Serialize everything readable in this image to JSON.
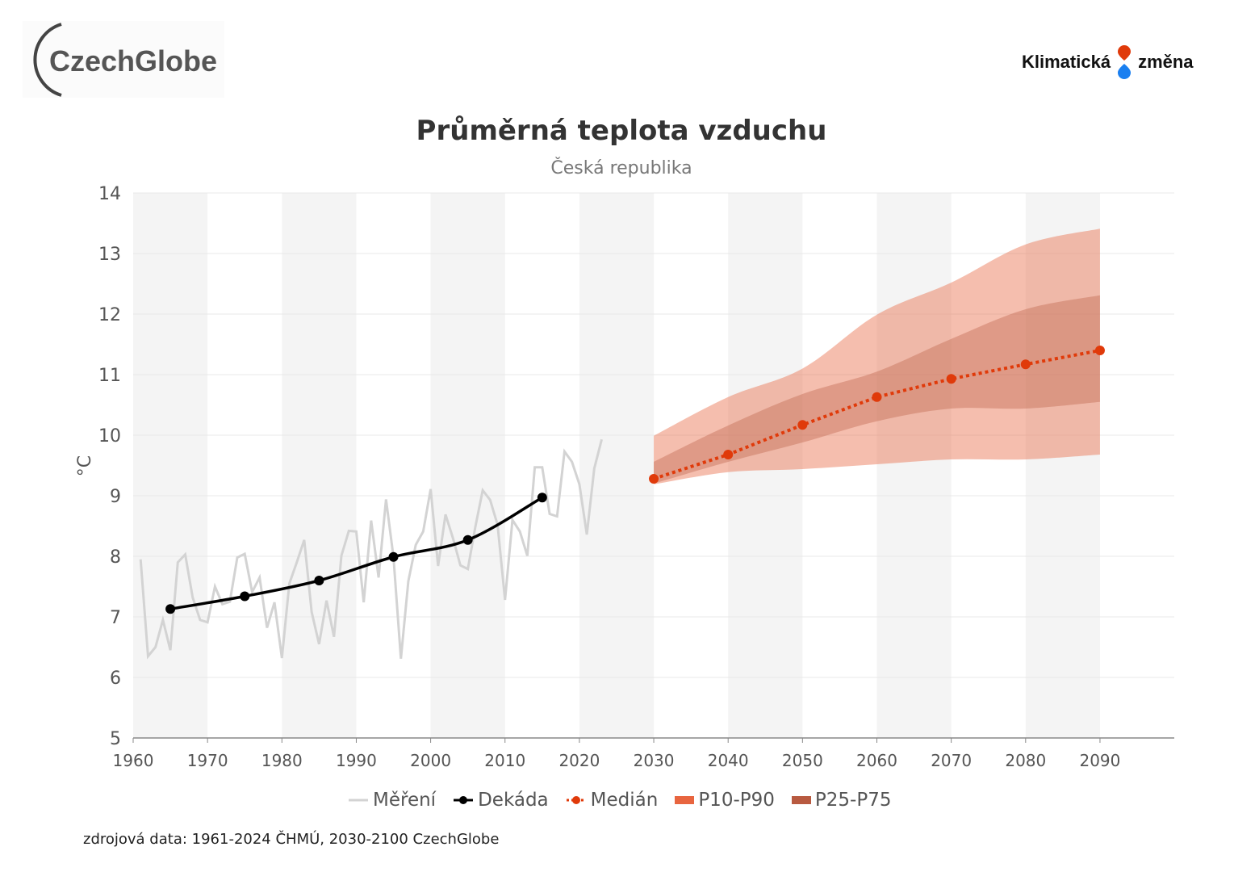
{
  "logos": {
    "left": "CzechGlobe",
    "right_a": "Klimatická",
    "right_b": "změna"
  },
  "title": "Průměrná teplota vzduchu",
  "subtitle": "Česká republika",
  "source": "zdrojová data: 1961-2024 ČHMÚ, 2030-2100 CzechGlobe",
  "chart_data": {
    "type": "line",
    "title": "Průměrná teplota vzduchu",
    "subtitle": "Česká republika",
    "xlabel": "",
    "ylabel": "°C",
    "xlim": [
      1960,
      2100
    ],
    "ylim": [
      5,
      14
    ],
    "x_ticks": [
      1960,
      1970,
      1980,
      1990,
      2000,
      2010,
      2020,
      2030,
      2040,
      2050,
      2060,
      2070,
      2080,
      2090
    ],
    "y_ticks": [
      5,
      6,
      7,
      8,
      9,
      10,
      11,
      12,
      13,
      14
    ],
    "grid": true,
    "legend_position": "bottom",
    "colors": {
      "measured": "#d3d3d3",
      "decade": "#000000",
      "median": "#e03a0a",
      "p10_p90": "#e8653f",
      "p25_p75": "#b85a40",
      "stripe": "#f4f4f4"
    },
    "legend": [
      "Měření",
      "Dekáda",
      "Medián",
      "P10-P90",
      "P25-P75"
    ],
    "series": [
      {
        "name": "Měření",
        "x": [
          1961,
          1962,
          1963,
          1964,
          1965,
          1966,
          1967,
          1968,
          1969,
          1970,
          1971,
          1972,
          1973,
          1974,
          1975,
          1976,
          1977,
          1978,
          1979,
          1980,
          1981,
          1982,
          1983,
          1984,
          1985,
          1986,
          1987,
          1988,
          1989,
          1990,
          1991,
          1992,
          1993,
          1994,
          1995,
          1996,
          1997,
          1998,
          1999,
          2000,
          2001,
          2002,
          2003,
          2004,
          2005,
          2006,
          2007,
          2008,
          2009,
          2010,
          2011,
          2012,
          2013,
          2014,
          2015,
          2016,
          2017,
          2018,
          2019,
          2020,
          2021,
          2022,
          2023
        ],
        "y": [
          7.95,
          6.35,
          6.5,
          6.95,
          6.45,
          7.9,
          8.03,
          7.32,
          6.95,
          6.91,
          7.5,
          7.21,
          7.25,
          7.98,
          8.04,
          7.41,
          7.65,
          6.82,
          7.24,
          6.32,
          7.55,
          7.9,
          8.27,
          7.08,
          6.55,
          7.27,
          6.67,
          8.01,
          8.42,
          8.41,
          7.24,
          8.59,
          7.65,
          8.94,
          7.99,
          6.31,
          7.59,
          8.19,
          8.41,
          9.11,
          7.84,
          8.69,
          8.3,
          7.85,
          7.79,
          8.48,
          9.09,
          8.93,
          8.52,
          7.28,
          8.6,
          8.41,
          8.01,
          9.47,
          9.47,
          8.7,
          8.66,
          9.73,
          9.56,
          9.19,
          8.36,
          9.45,
          9.93
        ]
      },
      {
        "name": "Dekáda",
        "x": [
          1965,
          1975,
          1985,
          1995,
          2005,
          2015
        ],
        "y": [
          7.13,
          7.34,
          7.6,
          7.99,
          8.27,
          8.97
        ]
      },
      {
        "name": "Medián",
        "x": [
          2030,
          2040,
          2050,
          2060,
          2070,
          2080,
          2090
        ],
        "y": [
          9.28,
          9.68,
          10.17,
          10.63,
          10.93,
          11.17,
          11.4
        ]
      },
      {
        "name": "P10-P90",
        "x": [
          2030,
          2040,
          2050,
          2060,
          2070,
          2080,
          2090
        ],
        "low": [
          9.19,
          9.39,
          9.44,
          9.52,
          9.6,
          9.6,
          9.68
        ],
        "high": [
          9.99,
          10.63,
          11.1,
          11.99,
          12.52,
          13.15,
          13.41
        ]
      },
      {
        "name": "P25-P75",
        "x": [
          2030,
          2040,
          2050,
          2060,
          2070,
          2080,
          2090
        ],
        "low": [
          9.2,
          9.56,
          9.88,
          10.23,
          10.44,
          10.44,
          10.55
        ],
        "high": [
          9.56,
          10.16,
          10.68,
          11.05,
          11.59,
          12.08,
          12.31
        ]
      }
    ]
  }
}
